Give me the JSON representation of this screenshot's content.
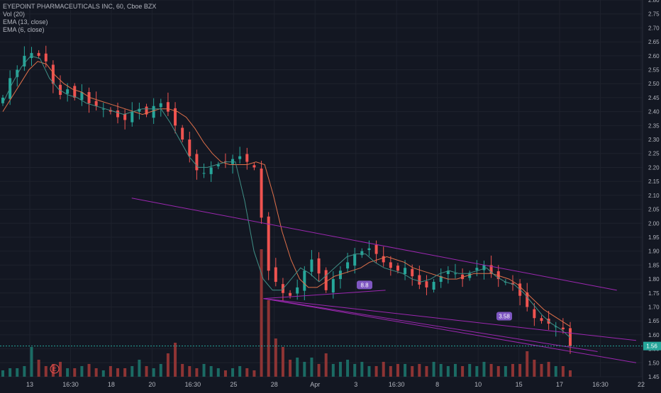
{
  "legend": {
    "symbol": "EYEPOINT PHARMACEUTICALS INC, 60, Cboe BZX",
    "vol": "Vol (20)",
    "ema13": "EMA (13, close)",
    "ema6": "EMA (6, close)"
  },
  "colors": {
    "background": "#131722",
    "grid": "#1e222d",
    "up": "#26a69a",
    "down": "#ef5350",
    "vol_up": "#1b6b64",
    "vol_down": "#8e3434",
    "ema13": "#e0704a",
    "ema6": "#3f8f86",
    "trend_lines": "#9c27b0",
    "price_tag": "#26a69a",
    "axis_text": "#b2b5be"
  },
  "chart_data": {
    "type": "candlestick",
    "title": "EYEPOINT PHARMACEUTICALS INC, 60, Cboe BZX",
    "ylim": [
      1.45,
      2.8
    ],
    "y_ticks": [
      "2.80",
      "2.75",
      "2.70",
      "2.65",
      "2.60",
      "2.55",
      "2.50",
      "2.45",
      "2.40",
      "2.35",
      "2.30",
      "2.25",
      "2.20",
      "2.15",
      "2.10",
      "2.05",
      "2.00",
      "1.95",
      "1.90",
      "1.85",
      "1.80",
      "1.75",
      "1.70",
      "1.65",
      "1.60",
      "1.55",
      "1.50",
      "1.45"
    ],
    "x_ticks": [
      "13",
      "16:30",
      "18",
      "20",
      "16:30",
      "25",
      "28",
      "Apr",
      "3",
      "16:30",
      "8",
      "10",
      "15",
      "17",
      "16:30",
      "22"
    ],
    "last_price": "1.56",
    "annotations": [
      "8.8",
      "3.58"
    ],
    "earnings_marker": "E",
    "price_path": [
      2.45,
      2.52,
      2.55,
      2.6,
      2.61,
      2.6,
      2.58,
      2.5,
      2.46,
      2.48,
      2.45,
      2.47,
      2.43,
      2.42,
      2.41,
      2.4,
      2.38,
      2.37,
      2.4,
      2.41,
      2.39,
      2.42,
      2.43,
      2.4,
      2.35,
      2.3,
      2.24,
      2.19,
      2.18,
      2.2,
      2.21,
      2.22,
      2.23,
      2.24,
      2.22,
      2.2,
      2.02,
      1.83,
      1.79,
      1.75,
      1.74,
      1.77,
      1.83,
      1.87,
      1.82,
      1.76,
      1.8,
      1.83,
      1.86,
      1.89,
      1.9,
      1.91,
      1.89,
      1.86,
      1.84,
      1.83,
      1.84,
      1.81,
      1.78,
      1.77,
      1.79,
      1.81,
      1.83,
      1.82,
      1.8,
      1.82,
      1.84,
      1.85,
      1.82,
      1.8,
      1.79,
      1.78,
      1.74,
      1.7,
      1.66,
      1.65,
      1.64,
      1.63,
      1.62,
      1.56
    ],
    "volumes": [
      3,
      4,
      4,
      5,
      14,
      8,
      5,
      6,
      7,
      4,
      4,
      5,
      6,
      4,
      3,
      5,
      4,
      4,
      5,
      8,
      5,
      4,
      6,
      11,
      16,
      6,
      5,
      4,
      6,
      5,
      4,
      3,
      4,
      5,
      4,
      3,
      60,
      36,
      18,
      14,
      8,
      9,
      7,
      9,
      6,
      11,
      6,
      7,
      8,
      6,
      7,
      5,
      5,
      7,
      5,
      6,
      6,
      5,
      6,
      5,
      7,
      6,
      5,
      6,
      5,
      6,
      5,
      7,
      6,
      5,
      5,
      6,
      6,
      12,
      8,
      6,
      7,
      5,
      5,
      3
    ],
    "ema13": [
      2.4,
      2.45,
      2.5,
      2.55,
      2.58,
      2.57,
      2.53,
      2.5,
      2.48,
      2.47,
      2.45,
      2.44,
      2.43,
      2.42,
      2.41,
      2.4,
      2.39,
      2.4,
      2.41,
      2.41,
      2.4,
      2.38,
      2.34,
      2.29,
      2.25,
      2.22,
      2.21,
      2.21,
      2.21,
      2.22,
      2.21,
      2.1,
      1.97,
      1.87,
      1.8,
      1.77,
      1.77,
      1.79,
      1.81,
      1.82,
      1.83,
      1.84,
      1.86,
      1.87,
      1.88,
      1.87,
      1.86,
      1.84,
      1.83,
      1.82,
      1.81,
      1.8,
      1.8,
      1.81,
      1.82,
      1.82,
      1.82,
      1.81,
      1.8,
      1.78,
      1.75,
      1.72,
      1.69,
      1.67,
      1.65,
      1.63
    ],
    "ema6": [
      2.43,
      2.5,
      2.56,
      2.6,
      2.59,
      2.52,
      2.48,
      2.46,
      2.45,
      2.43,
      2.42,
      2.41,
      2.4,
      2.39,
      2.4,
      2.41,
      2.41,
      2.41,
      2.36,
      2.3,
      2.24,
      2.2,
      2.2,
      2.21,
      2.22,
      2.22,
      2.08,
      1.9,
      1.8,
      1.76,
      1.76,
      1.8,
      1.84,
      1.82,
      1.79,
      1.82,
      1.85,
      1.88,
      1.89,
      1.89,
      1.86,
      1.84,
      1.83,
      1.82,
      1.8,
      1.79,
      1.8,
      1.82,
      1.83,
      1.82,
      1.82,
      1.83,
      1.84,
      1.81,
      1.79,
      1.78,
      1.75,
      1.71,
      1.67,
      1.64,
      1.62,
      1.59
    ],
    "trend_lines": [
      {
        "name": "upper-channel",
        "from": [
          0.205,
          2.09
        ],
        "to": [
          0.96,
          1.76
        ]
      },
      {
        "name": "wedge-lower-1",
        "from": [
          0.41,
          1.73
        ],
        "to": [
          0.99,
          1.5
        ]
      },
      {
        "name": "wedge-lower-2",
        "from": [
          0.41,
          1.73
        ],
        "to": [
          0.93,
          1.54
        ]
      },
      {
        "name": "fan-line-1",
        "from": [
          0.41,
          1.73
        ],
        "to": [
          0.99,
          1.58
        ]
      },
      {
        "name": "fan-line-2",
        "from": [
          0.41,
          1.73
        ],
        "to": [
          0.6,
          1.76
        ]
      }
    ]
  }
}
